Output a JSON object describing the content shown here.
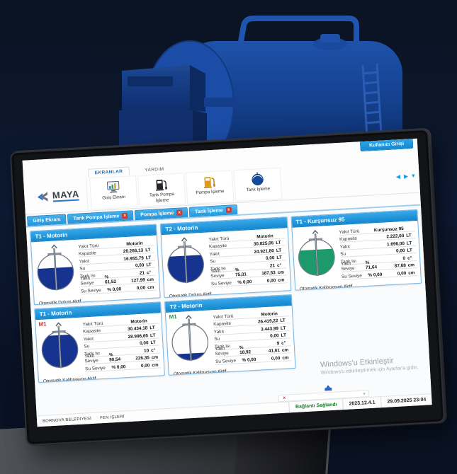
{
  "window": {
    "brand": "MAYA",
    "login_button": "Kullanıcı Girişi",
    "ribbon": {
      "tabs": [
        {
          "label": "EKRANLAR",
          "active": true
        },
        {
          "label": "YARDIM",
          "active": false
        }
      ],
      "buttons": [
        {
          "label": "Giriş Ekranı",
          "icon": "monitor-icon"
        },
        {
          "label": "Tank Pompa İşleme",
          "icon": "pump-dark-icon"
        },
        {
          "label": "Pompa İşleme",
          "icon": "pump-orange-icon"
        },
        {
          "label": "Tank İşleme",
          "icon": "tank-icon"
        }
      ]
    },
    "doc_tabs": [
      {
        "label": "Giriş Ekranı",
        "closable": false,
        "active": false
      },
      {
        "label": "Tank Pompa İşleme",
        "closable": true,
        "active": false
      },
      {
        "label": "Pompa İşleme",
        "closable": true,
        "active": false
      },
      {
        "label": "Tank İşleme",
        "closable": true,
        "active": true
      }
    ],
    "panels": [
      {
        "title": "T1 - Motorin",
        "marker": "",
        "marker_color": "",
        "fill_color": "#16338f",
        "fill_pct": 61.5,
        "footer": "Otomatik Dolum Aktif",
        "rows": [
          {
            "label": "Yakıt Türü",
            "pct": "",
            "value": "Motorin",
            "unit": ""
          },
          {
            "label": "Kapasite",
            "pct": "",
            "value": "26.266,13",
            "unit": "LT"
          },
          {
            "label": "Yakıt",
            "pct": "",
            "value": "16.955,79",
            "unit": "LT"
          },
          {
            "label": "Su",
            "pct": "",
            "value": "0,00",
            "unit": "LT"
          },
          {
            "label": "Tank Isı",
            "pct": "",
            "value": "21",
            "unit": "c°"
          },
          {
            "label": "Yakıt Seviye",
            "pct": "% 61,52",
            "value": "127,99",
            "unit": "cm"
          },
          {
            "label": "Su Seviye",
            "pct": "% 0,00",
            "value": "0,00",
            "unit": "cm"
          }
        ]
      },
      {
        "title": "T2 - Motorin",
        "marker": "",
        "marker_color": "",
        "fill_color": "#16338f",
        "fill_pct": 75.0,
        "footer": "Otomatik Dolum Aktif",
        "rows": [
          {
            "label": "Yakıt Türü",
            "pct": "",
            "value": "Motorin",
            "unit": ""
          },
          {
            "label": "Kapasite",
            "pct": "",
            "value": "30.825,05",
            "unit": "LT"
          },
          {
            "label": "Yakıt",
            "pct": "",
            "value": "24.921,80",
            "unit": "LT"
          },
          {
            "label": "Su",
            "pct": "",
            "value": "0,00",
            "unit": "LT"
          },
          {
            "label": "Tank Isı",
            "pct": "",
            "value": "21",
            "unit": "c°"
          },
          {
            "label": "Yakıt Seviye",
            "pct": "% 75,01",
            "value": "187,53",
            "unit": "cm"
          },
          {
            "label": "Su Seviye",
            "pct": "% 0,00",
            "value": "0,00",
            "unit": "cm"
          }
        ]
      },
      {
        "title": "T1 - Kurşunsuz 95",
        "marker": "",
        "marker_color": "",
        "fill_color": "#1d9a6c",
        "fill_pct": 71.6,
        "footer": "Otomatik Kalibrasyon Aktif",
        "rows": [
          {
            "label": "Yakıt Türü",
            "pct": "",
            "value": "Kurşunsuz 95",
            "unit": ""
          },
          {
            "label": "Kapasite",
            "pct": "",
            "value": "2.222,00",
            "unit": "LT"
          },
          {
            "label": "Yakıt",
            "pct": "",
            "value": "1.696,00",
            "unit": "LT"
          },
          {
            "label": "Su",
            "pct": "",
            "value": "0,00",
            "unit": "LT"
          },
          {
            "label": "Tank Isı",
            "pct": "",
            "value": "0",
            "unit": "c°"
          },
          {
            "label": "Yakıt Seviye",
            "pct": "% 71,64",
            "value": "87,68",
            "unit": "cm"
          },
          {
            "label": "Su Seviye",
            "pct": "% 0,00",
            "value": "0,00",
            "unit": "cm"
          }
        ]
      },
      {
        "title": "T1 - Motorin",
        "marker": "M1",
        "marker_color": "#d32f2f",
        "fill_color": "#16338f",
        "fill_pct": 90.5,
        "footer": "Otomatik Kalibrasyon Aktif",
        "rows": [
          {
            "label": "Yakıt Türü",
            "pct": "",
            "value": "Motorin",
            "unit": ""
          },
          {
            "label": "Kapasite",
            "pct": "",
            "value": "30.434,18",
            "unit": "LT"
          },
          {
            "label": "Yakıt",
            "pct": "",
            "value": "28.996,65",
            "unit": "LT"
          },
          {
            "label": "Su",
            "pct": "",
            "value": "0,00",
            "unit": "LT"
          },
          {
            "label": "Tank Isı",
            "pct": "",
            "value": "10",
            "unit": "c°"
          },
          {
            "label": "Yakıt Seviye",
            "pct": "% 90,54",
            "value": "226,35",
            "unit": "cm"
          },
          {
            "label": "Su Seviye",
            "pct": "% 0,00",
            "value": "0,00",
            "unit": "cm"
          }
        ]
      },
      {
        "title": "T2 - Motorin",
        "marker": "M1",
        "marker_color": "#2e9e4f",
        "fill_color": "#16338f",
        "fill_pct": 18.9,
        "footer": "Otomatik Kalibrasyon Aktif",
        "rows": [
          {
            "label": "Yakıt Türü",
            "pct": "",
            "value": "Motorin",
            "unit": ""
          },
          {
            "label": "Kapasite",
            "pct": "",
            "value": "26.419,22",
            "unit": "LT"
          },
          {
            "label": "Yakıt",
            "pct": "",
            "value": "3.443,99",
            "unit": "LT"
          },
          {
            "label": "Su",
            "pct": "",
            "value": "0,00",
            "unit": "LT"
          },
          {
            "label": "Tank Isı",
            "pct": "",
            "value": "9",
            "unit": "c°"
          },
          {
            "label": "Yakıt Seviye",
            "pct": "% 18,92",
            "value": "41,61",
            "unit": "cm"
          },
          {
            "label": "Su Seviye",
            "pct": "% 0,00",
            "value": "0,00",
            "unit": "cm"
          }
        ]
      }
    ],
    "watermark": {
      "line1": "Windows'u Etkinleştir",
      "line2": "Windows'u etkinleştirmek için Ayarlar'a gidin."
    },
    "statusbar": {
      "left1": "BORNOVA BELEDİYESİ",
      "left2": "FEN İŞLERİ",
      "connection": "Bağlantı Sağlandı",
      "version": "2023.12.4.1",
      "datetime": "29.09.2025 23:04"
    },
    "colors": {
      "accent": "#1f9ce4",
      "tab_blue": "#3aa7e6",
      "fuel_navy": "#16338f",
      "fuel_green": "#1d9a6c",
      "marker_red": "#d32f2f",
      "marker_green": "#2e9e4f",
      "status_green": "#1d7a2e",
      "render_blue": "#1c4da6"
    }
  }
}
